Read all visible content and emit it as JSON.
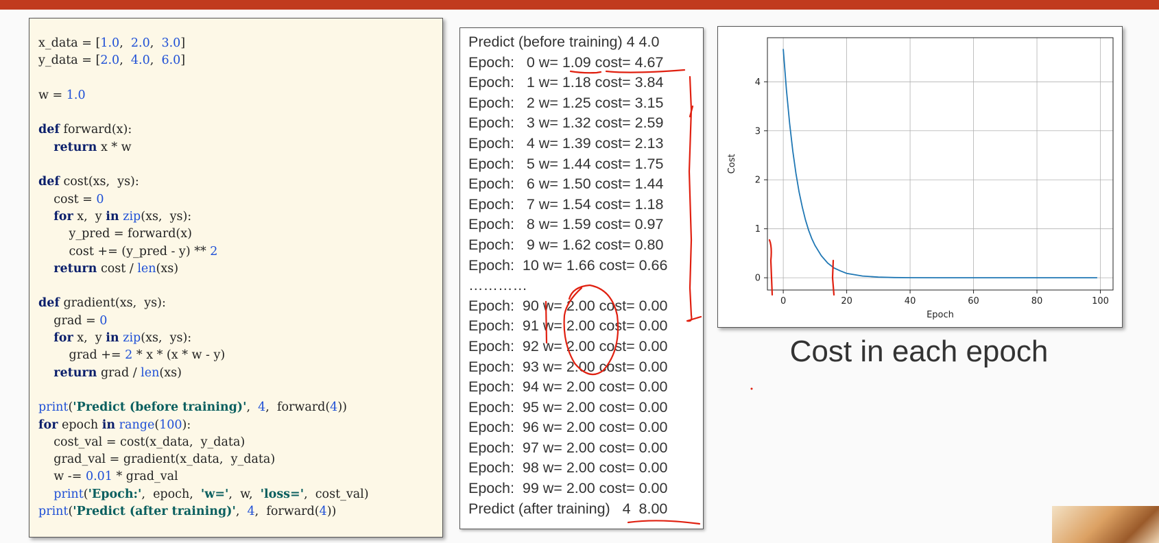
{
  "code": {
    "lines": [
      [
        {
          "t": "x_data = [",
          "c": ""
        },
        {
          "t": "1.0",
          "c": "num"
        },
        {
          "t": ",  ",
          "c": ""
        },
        {
          "t": "2.0",
          "c": "num"
        },
        {
          "t": ",  ",
          "c": ""
        },
        {
          "t": "3.0",
          "c": "num"
        },
        {
          "t": "]",
          "c": ""
        }
      ],
      [
        {
          "t": "y_data = [",
          "c": ""
        },
        {
          "t": "2.0",
          "c": "num"
        },
        {
          "t": ",  ",
          "c": ""
        },
        {
          "t": "4.0",
          "c": "num"
        },
        {
          "t": ",  ",
          "c": ""
        },
        {
          "t": "6.0",
          "c": "num"
        },
        {
          "t": "]",
          "c": ""
        }
      ],
      [],
      [
        {
          "t": "w = ",
          "c": ""
        },
        {
          "t": "1.0",
          "c": "num"
        }
      ],
      [],
      [
        {
          "t": "def",
          "c": "kw"
        },
        {
          "t": " forward(x):",
          "c": ""
        }
      ],
      [
        {
          "t": "    ",
          "c": ""
        },
        {
          "t": "return",
          "c": "kw"
        },
        {
          "t": " x * w",
          "c": ""
        }
      ],
      [],
      [
        {
          "t": "def",
          "c": "kw"
        },
        {
          "t": " cost(xs,  ys):",
          "c": ""
        }
      ],
      [
        {
          "t": "    cost = ",
          "c": ""
        },
        {
          "t": "0",
          "c": "num"
        }
      ],
      [
        {
          "t": "    ",
          "c": ""
        },
        {
          "t": "for",
          "c": "kw"
        },
        {
          "t": " x,  y ",
          "c": ""
        },
        {
          "t": "in",
          "c": "kw"
        },
        {
          "t": " ",
          "c": ""
        },
        {
          "t": "zip",
          "c": "num"
        },
        {
          "t": "(xs,  ys):",
          "c": ""
        }
      ],
      [
        {
          "t": "        y_pred = forward(x)",
          "c": ""
        }
      ],
      [
        {
          "t": "        cost += (y_pred - y) ** ",
          "c": ""
        },
        {
          "t": "2",
          "c": "num"
        }
      ],
      [
        {
          "t": "    ",
          "c": ""
        },
        {
          "t": "return",
          "c": "kw"
        },
        {
          "t": " cost / ",
          "c": ""
        },
        {
          "t": "len",
          "c": "num"
        },
        {
          "t": "(xs)",
          "c": ""
        }
      ],
      [],
      [
        {
          "t": "def",
          "c": "kw"
        },
        {
          "t": " gradient(xs,  ys):",
          "c": ""
        }
      ],
      [
        {
          "t": "    grad = ",
          "c": ""
        },
        {
          "t": "0",
          "c": "num"
        }
      ],
      [
        {
          "t": "    ",
          "c": ""
        },
        {
          "t": "for",
          "c": "kw"
        },
        {
          "t": " x,  y ",
          "c": ""
        },
        {
          "t": "in",
          "c": "kw"
        },
        {
          "t": " ",
          "c": ""
        },
        {
          "t": "zip",
          "c": "num"
        },
        {
          "t": "(xs,  ys):",
          "c": ""
        }
      ],
      [
        {
          "t": "        grad += ",
          "c": ""
        },
        {
          "t": "2",
          "c": "num"
        },
        {
          "t": " * x * (x * w - y)",
          "c": ""
        }
      ],
      [
        {
          "t": "    ",
          "c": ""
        },
        {
          "t": "return",
          "c": "kw"
        },
        {
          "t": " grad / ",
          "c": ""
        },
        {
          "t": "len",
          "c": "num"
        },
        {
          "t": "(xs)",
          "c": ""
        }
      ],
      [],
      [
        {
          "t": "print",
          "c": "num"
        },
        {
          "t": "(",
          "c": ""
        },
        {
          "t": "'Predict (before training)'",
          "c": "str"
        },
        {
          "t": ",  ",
          "c": ""
        },
        {
          "t": "4",
          "c": "num"
        },
        {
          "t": ",  forward(",
          "c": ""
        },
        {
          "t": "4",
          "c": "num"
        },
        {
          "t": "))",
          "c": ""
        }
      ],
      [
        {
          "t": "for",
          "c": "kw"
        },
        {
          "t": " epoch ",
          "c": ""
        },
        {
          "t": "in",
          "c": "kw"
        },
        {
          "t": " ",
          "c": ""
        },
        {
          "t": "range",
          "c": "num"
        },
        {
          "t": "(",
          "c": ""
        },
        {
          "t": "100",
          "c": "num"
        },
        {
          "t": "):",
          "c": ""
        }
      ],
      [
        {
          "t": "    cost_val = cost(x_data,  y_data)",
          "c": ""
        }
      ],
      [
        {
          "t": "    grad_val = gradient(x_data,  y_data)",
          "c": ""
        }
      ],
      [
        {
          "t": "    w -= ",
          "c": ""
        },
        {
          "t": "0.01",
          "c": "num"
        },
        {
          "t": " * grad_val",
          "c": ""
        }
      ],
      [
        {
          "t": "    ",
          "c": ""
        },
        {
          "t": "print",
          "c": "num"
        },
        {
          "t": "(",
          "c": ""
        },
        {
          "t": "'Epoch:'",
          "c": "str"
        },
        {
          "t": ",  epoch,  ",
          "c": ""
        },
        {
          "t": "'w='",
          "c": "str"
        },
        {
          "t": ",  w,  ",
          "c": ""
        },
        {
          "t": "'loss='",
          "c": "str"
        },
        {
          "t": ",  cost_val)",
          "c": ""
        }
      ],
      [
        {
          "t": "print",
          "c": "num"
        },
        {
          "t": "(",
          "c": ""
        },
        {
          "t": "'Predict (after training)'",
          "c": "str"
        },
        {
          "t": ",  ",
          "c": ""
        },
        {
          "t": "4",
          "c": "num"
        },
        {
          "t": ",  forward(",
          "c": ""
        },
        {
          "t": "4",
          "c": "num"
        },
        {
          "t": "))",
          "c": ""
        }
      ]
    ]
  },
  "output": {
    "lines": [
      "Predict (before training) 4 4.0",
      "Epoch:   0 w= 1.09 cost= 4.67",
      "Epoch:   1 w= 1.18 cost= 3.84",
      "Epoch:   2 w= 1.25 cost= 3.15",
      "Epoch:   3 w= 1.32 cost= 2.59",
      "Epoch:   4 w= 1.39 cost= 2.13",
      "Epoch:   5 w= 1.44 cost= 1.75",
      "Epoch:   6 w= 1.50 cost= 1.44",
      "Epoch:   7 w= 1.54 cost= 1.18",
      "Epoch:   8 w= 1.59 cost= 0.97",
      "Epoch:   9 w= 1.62 cost= 0.80",
      "Epoch:  10 w= 1.66 cost= 0.66",
      "…………",
      "Epoch:  90 w= 2.00 cost= 0.00",
      "Epoch:  91 w= 2.00 cost= 0.00",
      "Epoch:  92 w= 2.00 cost= 0.00",
      "Epoch:  93 w= 2.00 cost= 0.00",
      "Epoch:  94 w= 2.00 cost= 0.00",
      "Epoch:  95 w= 2.00 cost= 0.00",
      "Epoch:  96 w= 2.00 cost= 0.00",
      "Epoch:  97 w= 2.00 cost= 0.00",
      "Epoch:  98 w= 2.00 cost= 0.00",
      "Epoch:  99 w= 2.00 cost= 0.00",
      "Predict (after training)   4  8.00"
    ]
  },
  "caption": "Cost in each epoch",
  "colors": {
    "topbar": "#c13b1e",
    "line": "#1f77b4",
    "annotation": "#e02010"
  },
  "chart_data": {
    "type": "line",
    "title": "",
    "xlabel": "Epoch",
    "ylabel": "Cost",
    "xlim": [
      -5,
      104
    ],
    "ylim": [
      -0.25,
      4.9
    ],
    "xticks": [
      0,
      20,
      40,
      60,
      80,
      100
    ],
    "yticks": [
      0,
      1,
      2,
      3,
      4
    ],
    "grid": true,
    "series": [
      {
        "x": [
          0,
          1,
          2,
          3,
          4,
          5,
          6,
          7,
          8,
          9,
          10,
          12,
          14,
          16,
          18,
          20,
          25,
          30,
          35,
          40,
          50,
          60,
          70,
          80,
          90,
          99
        ],
        "y": [
          4.67,
          3.84,
          3.15,
          2.59,
          2.13,
          1.75,
          1.44,
          1.18,
          0.97,
          0.8,
          0.66,
          0.45,
          0.3,
          0.2,
          0.14,
          0.09,
          0.035,
          0.013,
          0.005,
          0.002,
          0.0,
          0.0,
          0.0,
          0.0,
          0.0,
          0.0
        ]
      }
    ]
  }
}
